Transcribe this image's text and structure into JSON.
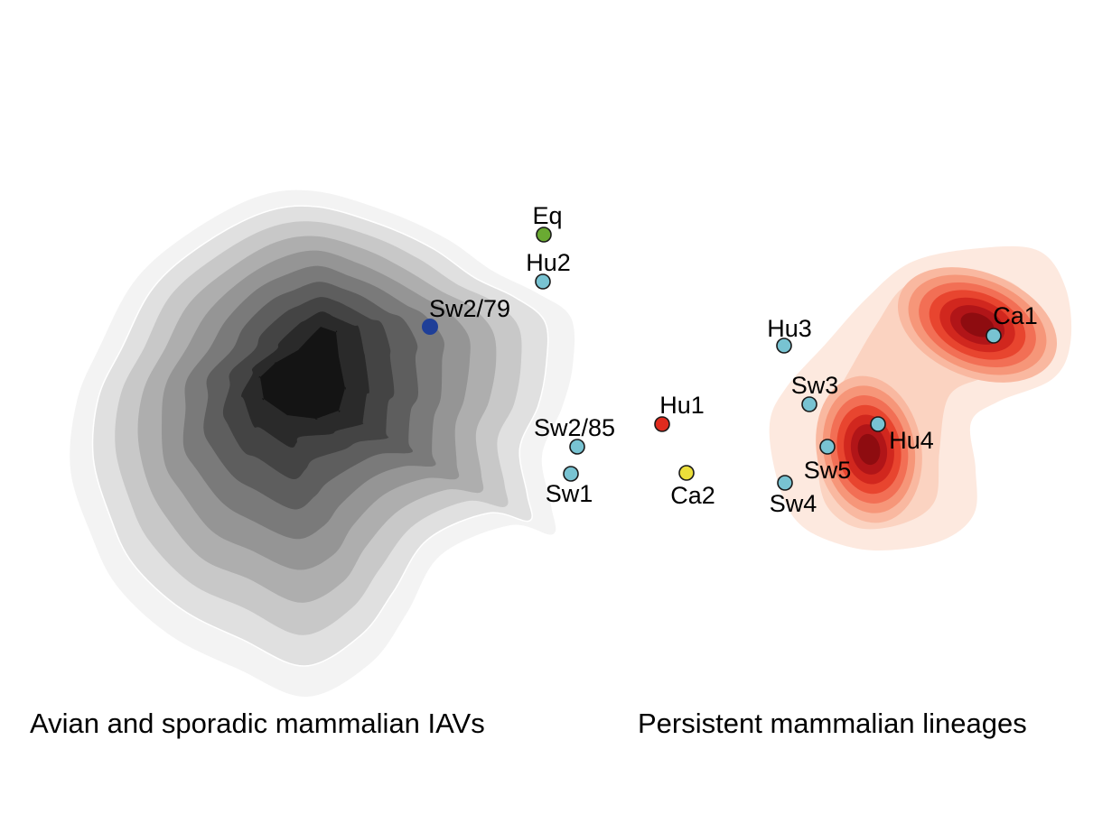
{
  "chart_data": {
    "type": "scatter",
    "title": "",
    "xlabel": "",
    "ylabel": "",
    "grid": false,
    "group_labels": {
      "left": "Avian and sporadic mammalian IAVs",
      "right": "Persistent mammalian lineages"
    },
    "density_colors": {
      "left": [
        "#f3f3f3",
        "#e0e0e0",
        "#c8c8c8",
        "#aeaeae",
        "#959595",
        "#7a7a7a",
        "#5e5e5e",
        "#444444",
        "#2a2a2a",
        "#141414"
      ],
      "right": [
        "#fde9df",
        "#fbd3c1",
        "#f9b8a0",
        "#f69679",
        "#f26f55",
        "#e8452f",
        "#d1271e",
        "#b11518",
        "#8e0c10"
      ]
    },
    "points": [
      {
        "label": "Eq",
        "color": "#6aaa32"
      },
      {
        "label": "Hu2",
        "color": "#78c3d2"
      },
      {
        "label": "Sw2/79",
        "color": "#1f3f98"
      },
      {
        "label": "Hu1",
        "color": "#e02b1e"
      },
      {
        "label": "Sw2/85",
        "color": "#78c3d2"
      },
      {
        "label": "Sw1",
        "color": "#78c3d2"
      },
      {
        "label": "Ca2",
        "color": "#ecdf3a"
      },
      {
        "label": "Hu3",
        "color": "#78c3d2"
      },
      {
        "label": "Ca1",
        "color": "#78c3d2"
      },
      {
        "label": "Sw3",
        "color": "#78c3d2"
      },
      {
        "label": "Hu4",
        "color": "#78c3d2"
      },
      {
        "label": "Sw5",
        "color": "#78c3d2"
      },
      {
        "label": "Sw4",
        "color": "#78c3d2"
      }
    ]
  }
}
